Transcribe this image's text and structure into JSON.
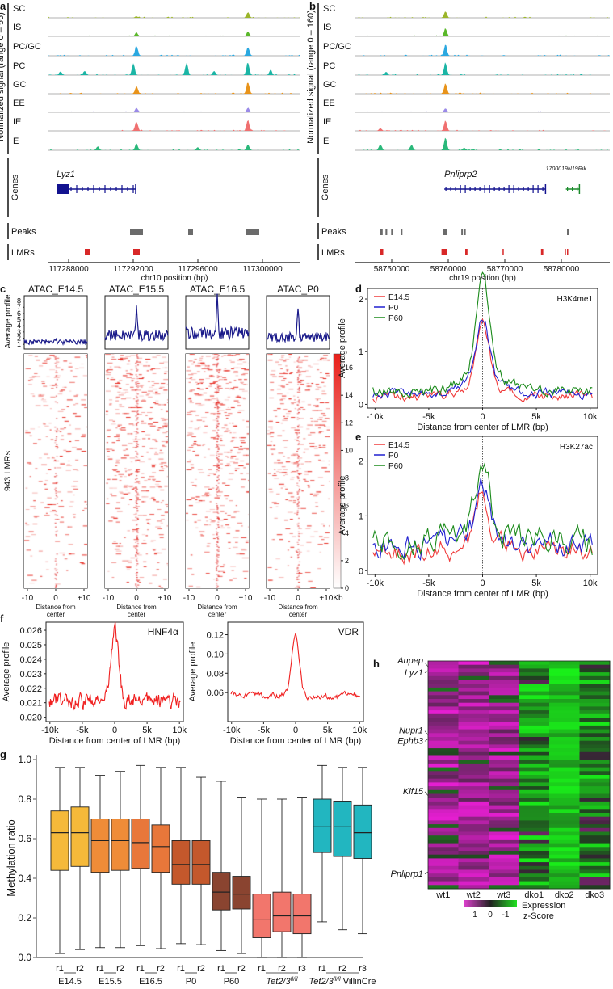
{
  "panels": {
    "a": "a",
    "b": "b",
    "c": "c",
    "d": "d",
    "e": "e",
    "f": "f",
    "g": "g",
    "h": "h"
  },
  "chart_data": [
    {
      "id": "a",
      "type": "genome-track",
      "ylabel": "Normalized signal (range 0 – 55)",
      "xlabel": "chr10 position (bp)",
      "xlim": [
        117286750,
        117302350
      ],
      "xticks": [
        "117288000",
        "117292000",
        "117296000",
        "117300000"
      ],
      "xtick_values": [
        117288000,
        117292000,
        117296000,
        117300000
      ],
      "tracks": [
        {
          "name": "SC",
          "color": "#9bb52a",
          "peaks": [
            [
              117292200,
              0.12
            ],
            [
              117299100,
              0.45
            ]
          ]
        },
        {
          "name": "IS",
          "color": "#5ab82a",
          "peaks": [
            [
              117292200,
              0.3
            ],
            [
              117299100,
              0.35
            ]
          ]
        },
        {
          "name": "PC/GC",
          "color": "#2aa8e0",
          "peaks": [
            [
              117292200,
              0.8
            ],
            [
              117299100,
              0.7
            ]
          ]
        },
        {
          "name": "PC",
          "color": "#1bb5a5",
          "peaks": [
            [
              117287500,
              0.3
            ],
            [
              117289000,
              0.35
            ],
            [
              117292000,
              0.9
            ],
            [
              117295300,
              0.9
            ],
            [
              117297000,
              0.3
            ],
            [
              117299100,
              1.0
            ],
            [
              117300500,
              0.4
            ]
          ]
        },
        {
          "name": "GC",
          "color": "#e8931a",
          "peaks": [
            [
              117292200,
              0.6
            ],
            [
              117299100,
              0.9
            ]
          ]
        },
        {
          "name": "EE",
          "color": "#9a8ae8",
          "peaks": [
            [
              117292200,
              0.35
            ],
            [
              117299100,
              0.35
            ]
          ]
        },
        {
          "name": "IE",
          "color": "#f07070",
          "peaks": [
            [
              117292200,
              0.7
            ],
            [
              117299100,
              0.8
            ]
          ]
        },
        {
          "name": "E",
          "color": "#2ab87a",
          "peaks": [
            [
              117289800,
              0.3
            ],
            [
              117292200,
              0.5
            ],
            [
              117296000,
              0.25
            ],
            [
              117299100,
              0.45
            ]
          ]
        }
      ],
      "genes_label": "Genes",
      "genes": [
        {
          "name": "Lyz1",
          "start": 117287250,
          "end": 117292150,
          "color": "#12128f"
        }
      ],
      "peaks_label": "Peaks",
      "peaks": [
        [
          117291800,
          117292600
        ],
        [
          117295400,
          117295700
        ],
        [
          117299000,
          117299800
        ]
      ],
      "lmrs_label": "LMRs",
      "lmrs": [
        [
          117289000,
          117289300
        ],
        [
          117292000,
          117292400
        ]
      ]
    },
    {
      "id": "b",
      "type": "genome-track",
      "ylabel": "Normalized signal (range 0 – 160)",
      "xlabel": "chr19 position (bp)",
      "xlim": [
        58743570,
        58788570
      ],
      "xticks": [
        "58750000",
        "58760000",
        "58770000",
        "58780000"
      ],
      "xtick_values": [
        58750000,
        58760000,
        58770000,
        58780000
      ],
      "tracks": [
        {
          "name": "SC",
          "color": "#9bb52a",
          "peaks": [
            [
              58759500,
              0.5
            ]
          ]
        },
        {
          "name": "IS",
          "color": "#5ab82a",
          "peaks": [
            [
              58759500,
              0.6
            ]
          ]
        },
        {
          "name": "PC/GC",
          "color": "#2aa8e0",
          "peaks": [
            [
              58759500,
              0.9
            ]
          ]
        },
        {
          "name": "PC",
          "color": "#1bb5a5",
          "peaks": [
            [
              58759500,
              1.0
            ],
            [
              58749000,
              0.25
            ]
          ]
        },
        {
          "name": "GC",
          "color": "#e8931a",
          "peaks": [
            [
              58759500,
              0.8
            ]
          ]
        },
        {
          "name": "EE",
          "color": "#9a8ae8",
          "peaks": [
            [
              58759500,
              0.3
            ]
          ]
        },
        {
          "name": "IE",
          "color": "#f07070",
          "peaks": [
            [
              58759500,
              0.8
            ],
            [
              58748000,
              0.2
            ]
          ]
        },
        {
          "name": "E",
          "color": "#2ab87a",
          "peaks": [
            [
              58748000,
              0.5
            ],
            [
              58753500,
              0.4
            ],
            [
              58759500,
              0.9
            ],
            [
              58762800,
              0.2
            ]
          ]
        }
      ],
      "genes_label": "Genes",
      "genes": [
        {
          "name": "Pnliprp2",
          "start": 58759300,
          "end": 58777200,
          "color": "#12128f"
        },
        {
          "name": "1700019N19Rik",
          "start": 58780800,
          "end": 58783200,
          "color": "#1a8a2a"
        }
      ],
      "peaks_label": "Peaks",
      "peaks": [
        [
          58748000,
          58748400
        ],
        [
          58748900,
          58749200
        ],
        [
          58749900,
          58750100
        ],
        [
          58751600,
          58751900
        ],
        [
          58759000,
          58759800
        ],
        [
          58762300,
          58762500
        ],
        [
          58762800,
          58763000
        ],
        [
          58781000,
          58781200
        ]
      ],
      "lmrs_label": "LMRs",
      "lmrs": [
        [
          58748000,
          58748500
        ],
        [
          58758800,
          58759800
        ],
        [
          58763000,
          58763400
        ],
        [
          58769600,
          58769800
        ],
        [
          58776400,
          58776800
        ],
        [
          58780600,
          58780800
        ],
        [
          58781000,
          58781200
        ]
      ]
    },
    {
      "id": "c",
      "type": "heatmap",
      "ylabel_profile": "Average profile",
      "ylabel_heatmap": "943 LMRs",
      "xlabel": "Distance from center",
      "x_unit": "Kb",
      "xticks": [
        "-10",
        "0",
        "+10"
      ],
      "profile_yticks": [
        "1",
        "2",
        "3",
        "4",
        "5",
        "6",
        "7",
        "8"
      ],
      "profile_ylim": [
        0.5,
        8.6
      ],
      "samples": [
        {
          "name": "ATAC_E14.5",
          "baseline": 1.3,
          "peak": 1.9,
          "density": 0.25
        },
        {
          "name": "ATAC_E15.5",
          "baseline": 2.3,
          "peak": 6.7,
          "density": 0.45
        },
        {
          "name": "ATAC_E16.5",
          "baseline": 2.6,
          "peak": 8.1,
          "density": 0.5
        },
        {
          "name": "ATAC_P0",
          "baseline": 2.0,
          "peak": 6.4,
          "density": 0.38
        }
      ],
      "colorbar": {
        "ticks": [
          "0",
          "2",
          "4",
          "6",
          "8",
          "10",
          "12",
          "14",
          "16"
        ],
        "range": [
          0,
          17
        ],
        "color": "#e8201a"
      }
    },
    {
      "id": "d",
      "type": "line",
      "title": "H3K4me1",
      "xlabel": "Distance from center of LMR (bp)",
      "ylabel": "Average profile",
      "xticks": [
        "-10k",
        "-5k",
        "0",
        "5k",
        "10k"
      ],
      "yticks": [
        "0",
        "1",
        "2"
      ],
      "ylim": [
        -0.07,
        2.2
      ],
      "series": [
        {
          "name": "E14.5",
          "color": "#f03a3a",
          "baseline": 0.15,
          "peak": 1.3,
          "noise": 0.08
        },
        {
          "name": "P0",
          "color": "#2020d0",
          "baseline": 0.2,
          "peak": 1.38,
          "noise": 0.08
        },
        {
          "name": "P60",
          "color": "#1a8a1a",
          "baseline": 0.25,
          "peak": 2.05,
          "noise": 0.09
        }
      ]
    },
    {
      "id": "e",
      "type": "line",
      "title": "H3K27ac",
      "xlabel": "Distance from center of LMR (bp)",
      "ylabel": "Average profile",
      "xticks": [
        "-10k",
        "-5k",
        "0",
        "5k",
        "10k"
      ],
      "yticks": [
        "0",
        "1",
        "2"
      ],
      "ylim": [
        -0.07,
        2.45
      ],
      "series": [
        {
          "name": "E14.5",
          "color": "#f03a3a",
          "baseline": 0.35,
          "peak": 1.25,
          "noise": 0.18
        },
        {
          "name": "P0",
          "color": "#2020d0",
          "baseline": 0.45,
          "peak": 1.35,
          "noise": 0.2
        },
        {
          "name": "P60",
          "color": "#1a8a1a",
          "baseline": 0.55,
          "peak": 1.78,
          "noise": 0.22
        }
      ]
    },
    {
      "id": "f1",
      "type": "line",
      "title": "HNF4α",
      "xlabel": "Distance from center of LMR (bp)",
      "ylabel": "Average profile",
      "xticks": [
        "-10k",
        "-5k",
        "0",
        "5k",
        "10k"
      ],
      "yticks": [
        "0.020",
        "0.021",
        "0.022",
        "0.023",
        "0.024",
        "0.025",
        "0.026"
      ],
      "ytick_values": [
        0.02,
        0.021,
        0.022,
        0.023,
        0.024,
        0.025,
        0.026
      ],
      "ylim": [
        0.0197,
        0.02656
      ],
      "series": [
        {
          "name": "HNF4α",
          "color": "#f02020",
          "baseline": 0.0211,
          "peak": 0.0261,
          "noise": 0.0005
        }
      ]
    },
    {
      "id": "f2",
      "type": "line",
      "title": "VDR",
      "xlabel": "Distance from center of LMR (bp)",
      "ylabel": "Average profile",
      "xticks": [
        "-10k",
        "-5k",
        "0",
        "5k",
        "10k"
      ],
      "yticks": [
        "0.06",
        "0.08",
        "0.10",
        "0.12"
      ],
      "ytick_values": [
        0.06,
        0.08,
        0.1,
        0.12
      ],
      "ylim": [
        0.03,
        0.133
      ],
      "series": [
        {
          "name": "VDR",
          "color": "#f02020",
          "baseline": 0.057,
          "peak": 0.122,
          "noise": 0.003
        }
      ]
    },
    {
      "id": "g",
      "type": "box",
      "ylabel": "Methylation ratio",
      "ylim": [
        0,
        1
      ],
      "yticks": [
        "0.0",
        "0.2",
        "0.4",
        "0.6",
        "0.8",
        "1.0"
      ],
      "groups": [
        {
          "name": "E14.5",
          "color": "#f5b93a",
          "boxes": [
            {
              "rep": "r1",
              "min": 0.02,
              "q1": 0.44,
              "median": 0.63,
              "q3": 0.74,
              "max": 0.96
            },
            {
              "rep": "r2",
              "min": 0.04,
              "q1": 0.46,
              "median": 0.63,
              "q3": 0.76,
              "max": 0.96
            }
          ]
        },
        {
          "name": "E15.5",
          "color": "#ef8c38",
          "boxes": [
            {
              "rep": "r1",
              "min": 0.05,
              "q1": 0.43,
              "median": 0.59,
              "q3": 0.7,
              "max": 0.92
            },
            {
              "rep": "r2",
              "min": 0.05,
              "q1": 0.44,
              "median": 0.59,
              "q3": 0.7,
              "max": 0.94
            }
          ]
        },
        {
          "name": "E16.5",
          "color": "#e8773a",
          "boxes": [
            {
              "rep": "r1",
              "min": 0.06,
              "q1": 0.45,
              "median": 0.58,
              "q3": 0.7,
              "max": 0.97
            },
            {
              "rep": "r2",
              "min": 0.045,
              "q1": 0.43,
              "median": 0.56,
              "q3": 0.67,
              "max": 0.96
            }
          ]
        },
        {
          "name": "P0",
          "color": "#c4582c",
          "boxes": [
            {
              "rep": "r1",
              "min": 0.07,
              "q1": 0.37,
              "median": 0.47,
              "q3": 0.59,
              "max": 0.96
            },
            {
              "rep": "r2",
              "min": 0.065,
              "q1": 0.37,
              "median": 0.47,
              "q3": 0.59,
              "max": 0.91
            }
          ]
        },
        {
          "name": "P60",
          "color": "#8a4430",
          "boxes": [
            {
              "rep": "r1",
              "min": 0.035,
              "q1": 0.24,
              "median": 0.33,
              "q3": 0.43,
              "max": 0.89
            },
            {
              "rep": "r2",
              "min": 0.02,
              "q1": 0.245,
              "median": 0.32,
              "q3": 0.41,
              "max": 0.81
            }
          ]
        },
        {
          "name": "Tet2/3",
          "sup": "fl/fl",
          "suffix": "",
          "color": "#f2766c",
          "boxes": [
            {
              "rep": "r1",
              "min": 0.0,
              "q1": 0.1,
              "median": 0.19,
              "q3": 0.32,
              "max": 0.8
            },
            {
              "rep": "r2",
              "min": 0.0,
              "q1": 0.13,
              "median": 0.21,
              "q3": 0.33,
              "max": 0.8
            },
            {
              "rep": "r3",
              "min": 0.0,
              "q1": 0.12,
              "median": 0.21,
              "q3": 0.32,
              "max": 0.81
            }
          ]
        },
        {
          "name": "Tet2/3",
          "sup": "fl/fl",
          "suffix": " VillinCre",
          "color": "#22b6c0",
          "boxes": [
            {
              "rep": "r1",
              "min": 0.18,
              "q1": 0.53,
              "median": 0.66,
              "q3": 0.8,
              "max": 0.97
            },
            {
              "rep": "r2",
              "min": 0.14,
              "q1": 0.51,
              "median": 0.66,
              "q3": 0.79,
              "max": 0.96
            },
            {
              "rep": "r3",
              "min": 0.12,
              "q1": 0.5,
              "median": 0.63,
              "q3": 0.77,
              "max": 0.96
            }
          ]
        }
      ]
    },
    {
      "id": "h",
      "type": "heatmap",
      "columns": [
        "wt1",
        "wt2",
        "wt3",
        "dko1",
        "dko2",
        "dko3"
      ],
      "rows": 60,
      "labeled_genes": [
        {
          "name": "Anpep",
          "row": 1
        },
        {
          "name": "Lyz1",
          "row": 2
        },
        {
          "name": "Nupr1",
          "row": 19
        },
        {
          "name": "Ephb3",
          "row": 20
        },
        {
          "name": "Klf15",
          "row": 35
        },
        {
          "name": "Pnliprp1",
          "row": 55
        }
      ],
      "colorbar": {
        "label1": "Expression",
        "label2": "z-Score",
        "ticks": [
          "1",
          "0",
          "-1"
        ],
        "high_color": "#e040d0",
        "low_color": "#20e020"
      }
    }
  ]
}
